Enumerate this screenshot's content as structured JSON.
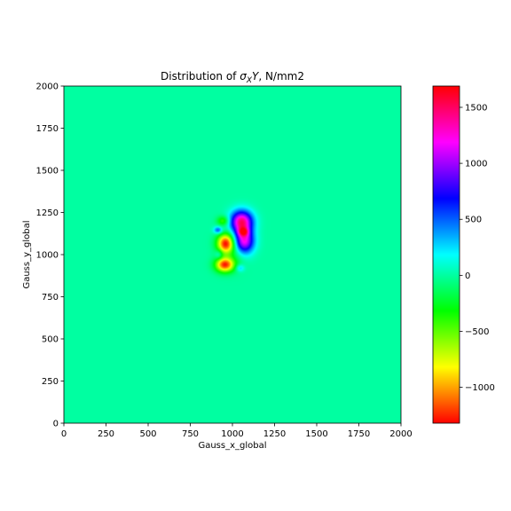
{
  "chart_data": {
    "type": "heatmap",
    "title": "Distribution of σ_XY, N/mm2",
    "title_parts": {
      "prefix": "Distribution of ",
      "sigma": "σ",
      "sub": "X",
      "italic": "Y",
      "suffix": ", N/mm2"
    },
    "xlabel": "Gauss_x_global",
    "ylabel": "Gauss_y_global",
    "xlim": [
      0,
      2000
    ],
    "ylim": [
      0,
      2000
    ],
    "xticks": [
      0,
      250,
      500,
      750,
      1000,
      1250,
      1500,
      1750,
      2000
    ],
    "yticks": [
      0,
      250,
      500,
      750,
      1000,
      1250,
      1500,
      1750,
      2000
    ],
    "colormap": "hsv",
    "colorbar": {
      "range": [
        -1320,
        1690
      ],
      "ticks": [
        -1000,
        -500,
        0,
        500,
        1000,
        1500
      ],
      "tick_labels": [
        "−1000",
        "−500",
        "0",
        "500",
        "1000",
        "1500"
      ]
    },
    "background_value": 0,
    "features": [
      {
        "x": 1055,
        "y": 1195,
        "value": 1450,
        "sx": 45,
        "sy": 45
      },
      {
        "x": 1070,
        "y": 1080,
        "value": 1200,
        "sx": 40,
        "sy": 50
      },
      {
        "x": 1065,
        "y": 1135,
        "value": 700,
        "sx": 22,
        "sy": 18
      },
      {
        "x": 960,
        "y": 1065,
        "value": -1300,
        "sx": 35,
        "sy": 40
      },
      {
        "x": 955,
        "y": 940,
        "value": -1250,
        "sx": 38,
        "sy": 30
      },
      {
        "x": 945,
        "y": 1200,
        "value": -450,
        "sx": 25,
        "sy": 20
      },
      {
        "x": 915,
        "y": 1145,
        "value": 550,
        "sx": 18,
        "sy": 15
      },
      {
        "x": 1045,
        "y": 920,
        "value": 320,
        "sx": 18,
        "sy": 15
      },
      {
        "x": 920,
        "y": 1000,
        "value": 260,
        "sx": 16,
        "sy": 20
      },
      {
        "x": 1020,
        "y": 1000,
        "value": -160,
        "sx": 40,
        "sy": 55
      }
    ]
  }
}
